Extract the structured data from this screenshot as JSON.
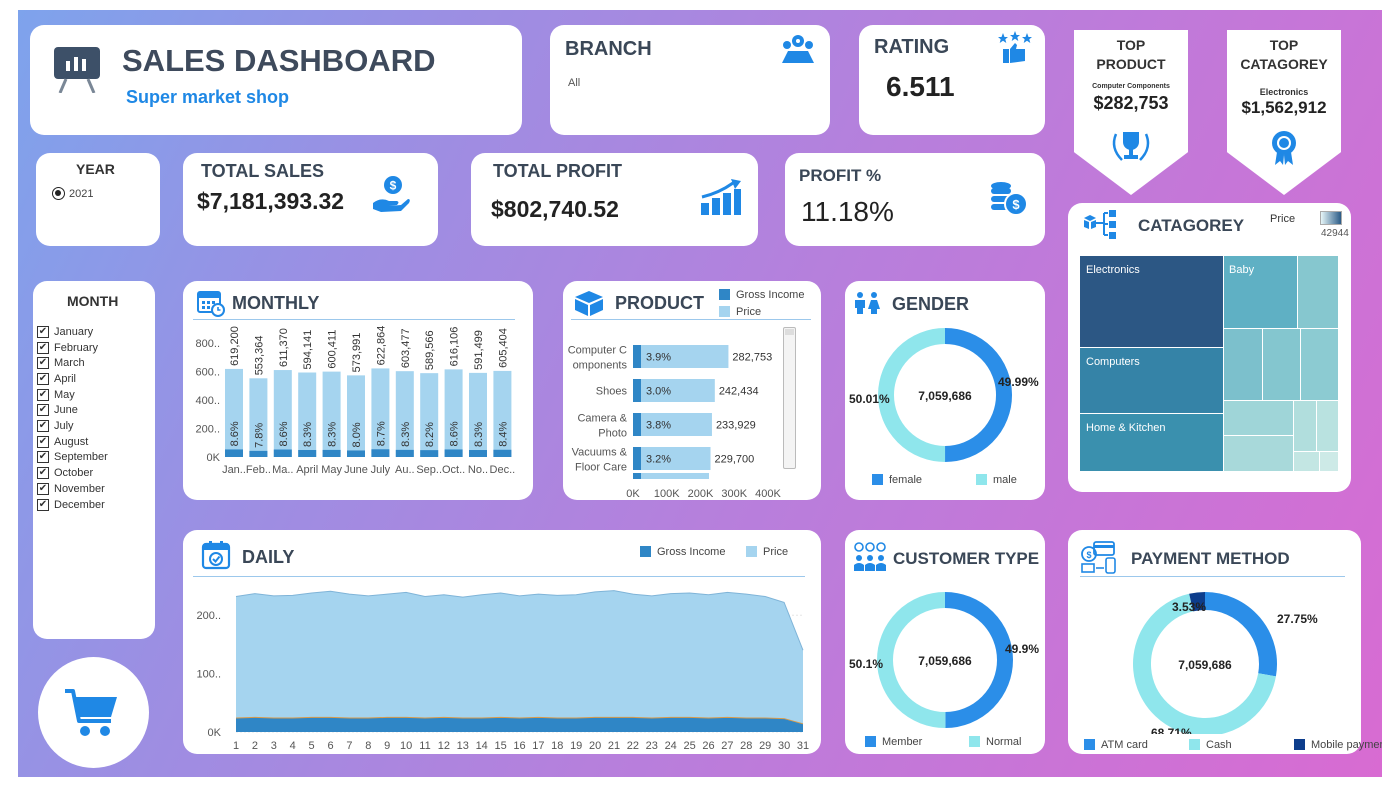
{
  "header": {
    "title": "SALES DASHBOARD",
    "subtitle": "Super market shop"
  },
  "branch": {
    "title": "BRANCH",
    "value": "All"
  },
  "rating": {
    "title": "RATING",
    "value": "6.511"
  },
  "top_product": {
    "line1": "TOP",
    "line2": "PRODUCT",
    "name": "Computer Components",
    "value": "$282,753"
  },
  "top_category": {
    "line1": "TOP",
    "line2": "CATAGOREY",
    "name": "Electronics",
    "value": "$1,562,912"
  },
  "year": {
    "title": "YEAR",
    "option": "2021"
  },
  "total_sales": {
    "title": "TOTAL SALES",
    "value": "$7,181,393.32"
  },
  "total_profit": {
    "title": "TOTAL PROFIT",
    "value": "$802,740.52"
  },
  "profit_pct": {
    "title": "PROFIT %",
    "value": "11.18%"
  },
  "month_filter": {
    "title": "MONTH",
    "months": [
      "January",
      "February",
      "March",
      "April",
      "May",
      "June",
      "July",
      "August",
      "September",
      "October",
      "November",
      "December"
    ]
  },
  "monthly": {
    "title": "MONTHLY",
    "y_ticks": [
      "800..",
      "600..",
      "400..",
      "200..",
      "0K"
    ],
    "x_labels": [
      "Jan..",
      "Feb..",
      "Ma..",
      "April",
      "May",
      "June",
      "July",
      "Au..",
      "Sep..",
      "Oct..",
      "No..",
      "Dec.."
    ],
    "value_labels": [
      "619,200",
      "553,364",
      "611,370",
      "594,141",
      "600,411",
      "573,991",
      "622,864",
      "603,477",
      "589,566",
      "616,106",
      "591,499",
      "605,404"
    ],
    "pct_labels": [
      "8.6%",
      "7.8%",
      "8.6%",
      "8.3%",
      "8.3%",
      "8.0%",
      "8.7%",
      "8.3%",
      "8.2%",
      "8.6%",
      "8.3%",
      "8.4%"
    ]
  },
  "product": {
    "title": "PRODUCT",
    "legend": [
      "Gross Income",
      "Price"
    ],
    "rows": [
      {
        "label1": "Computer C",
        "label2": "omponents",
        "pct": "3.9%",
        "value": "282,753"
      },
      {
        "label1": "Shoes",
        "label2": "",
        "pct": "3.0%",
        "value": "242,434"
      },
      {
        "label1": "Camera &",
        "label2": "Photo",
        "pct": "3.8%",
        "value": "233,929"
      },
      {
        "label1": "Vacuums &",
        "label2": "Floor Care",
        "pct": "3.2%",
        "value": "229,700"
      }
    ],
    "x_ticks": [
      "0K",
      "100K",
      "200K",
      "300K",
      "400K"
    ]
  },
  "gender": {
    "title": "GENDER",
    "center": "7,059,686",
    "left_pct": "50.01%",
    "right_pct": "49.99%",
    "legend": [
      "female",
      "male"
    ]
  },
  "category_map": {
    "title": "CATAGOREY",
    "legend_title": "Price",
    "legend_range": "42944",
    "labels": [
      "Electronics",
      "Baby",
      "Computers",
      "Home & Kitchen"
    ]
  },
  "daily": {
    "title": "DAILY",
    "legend": [
      "Gross Income",
      "Price"
    ],
    "y_ticks": [
      "200..",
      "100..",
      "0K"
    ],
    "x_labels": [
      "1",
      "2",
      "3",
      "4",
      "5",
      "6",
      "7",
      "8",
      "9",
      "10",
      "11",
      "12",
      "13",
      "14",
      "15",
      "16",
      "17",
      "18",
      "19",
      "20",
      "21",
      "22",
      "23",
      "24",
      "25",
      "26",
      "27",
      "28",
      "29",
      "30",
      "31"
    ]
  },
  "customer_type": {
    "title": "CUSTOMER TYPE",
    "center": "7,059,686",
    "left_pct": "50.1%",
    "right_pct": "49.9%",
    "legend": [
      "Member",
      "Normal"
    ]
  },
  "payment": {
    "title": "PAYMENT METHOD",
    "center": "7,059,686",
    "pct_top_left": "3.53%",
    "pct_right": "27.75%",
    "pct_bottom": "68.71%",
    "legend": [
      "ATM card",
      "Cash",
      "Mobile payment"
    ]
  },
  "chart_data": [
    {
      "type": "bar",
      "title": "MONTHLY",
      "categories": [
        "Jan..",
        "Feb..",
        "Ma..",
        "April",
        "May",
        "June",
        "July",
        "Au..",
        "Sep..",
        "Oct..",
        "No..",
        "Dec.."
      ],
      "series": [
        {
          "name": "Price",
          "values": [
            619200,
            553364,
            611370,
            594141,
            600411,
            573991,
            622864,
            603477,
            589566,
            616106,
            591499,
            605404
          ]
        },
        {
          "name": "Gross Income",
          "values": [
            53200,
            43100,
            52600,
            49300,
            49800,
            45900,
            54200,
            50100,
            48300,
            53000,
            49100,
            50800
          ]
        }
      ],
      "ylim": [
        0,
        900000
      ]
    },
    {
      "type": "bar",
      "title": "PRODUCT",
      "orientation": "horizontal",
      "categories": [
        "Computer Components",
        "Shoes",
        "Camera & Photo",
        "Vacuums & Floor Care"
      ],
      "series": [
        {
          "name": "Price",
          "values": [
            282753,
            242434,
            233929,
            229700
          ]
        },
        {
          "name": "Gross Income",
          "values": [
            30000,
            22000,
            26000,
            21500
          ]
        }
      ],
      "xlim": [
        0,
        400000
      ]
    },
    {
      "type": "pie",
      "title": "GENDER",
      "labels": [
        "female",
        "male"
      ],
      "values": [
        49.99,
        50.01
      ],
      "colors": [
        "#2b8ee8",
        "#8fe6ec"
      ]
    },
    {
      "type": "heatmap",
      "title": "CATAGOREY",
      "labels": [
        "Electronics",
        "Baby",
        "Computers",
        "Home & Kitchen"
      ]
    },
    {
      "type": "area",
      "title": "DAILY",
      "x": [
        1,
        2,
        3,
        4,
        5,
        6,
        7,
        8,
        9,
        10,
        11,
        12,
        13,
        14,
        15,
        16,
        17,
        18,
        19,
        20,
        21,
        22,
        23,
        24,
        25,
        26,
        27,
        28,
        29,
        30,
        31
      ],
      "series": [
        {
          "name": "Price",
          "values": [
            232,
            237,
            233,
            234,
            238,
            241,
            236,
            233,
            236,
            239,
            232,
            235,
            231,
            235,
            238,
            233,
            236,
            234,
            235,
            240,
            242,
            236,
            233,
            237,
            238,
            235,
            239,
            236,
            232,
            222,
            140
          ]
        },
        {
          "name": "Gross Income",
          "values": [
            24,
            25,
            24,
            24,
            25,
            25,
            24,
            24,
            25,
            25,
            24,
            25,
            24,
            24,
            25,
            24,
            25,
            24,
            24,
            25,
            25,
            25,
            24,
            25,
            25,
            24,
            25,
            24,
            24,
            23,
            14
          ]
        }
      ],
      "ylim": [
        0,
        250
      ]
    },
    {
      "type": "pie",
      "title": "CUSTOMER TYPE",
      "labels": [
        "Member",
        "Normal"
      ],
      "values": [
        49.9,
        50.1
      ],
      "colors": [
        "#2b8ee8",
        "#8fe6ec"
      ]
    },
    {
      "type": "pie",
      "title": "PAYMENT METHOD",
      "labels": [
        "ATM card",
        "Cash",
        "Mobile payment"
      ],
      "values": [
        27.75,
        68.71,
        3.53
      ],
      "colors": [
        "#2b8ee8",
        "#8fe6ec",
        "#0d3d8c"
      ]
    }
  ],
  "colors": {
    "accent": "#1f88e5",
    "dark_bar": "#2f86c6",
    "light_bar": "#a5d4ef",
    "donut_light": "#8fe6ec",
    "donut_dark": "#2b8ee8"
  },
  "icons": [
    "presentation-icon",
    "map-pins-icon",
    "thumbs-up-stars-icon",
    "trophy-icon",
    "award-icon",
    "dollar-hand-icon",
    "growth-chart-icon",
    "coins-icon",
    "calendar-icon",
    "boxes-icon",
    "people-icon",
    "category-icon",
    "calendar-check-icon",
    "customers-icon",
    "payment-icon",
    "cart-icon"
  ]
}
